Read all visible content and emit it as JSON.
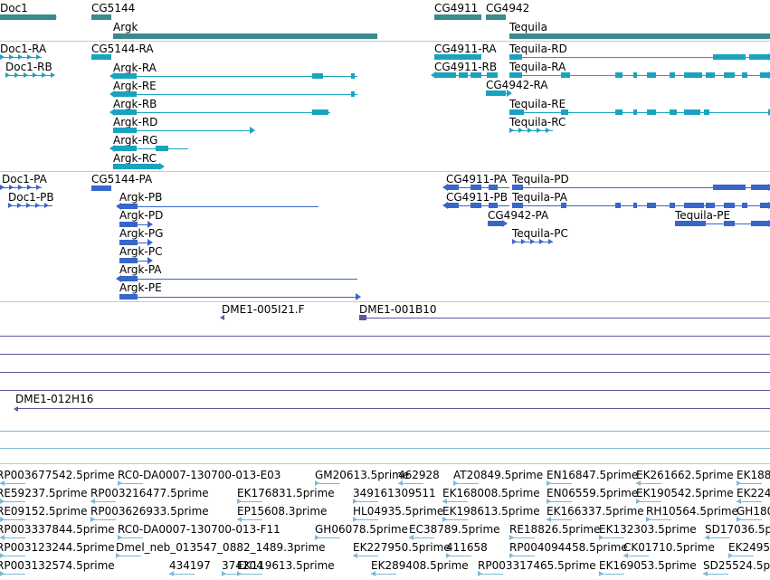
{
  "colors": {
    "gene": "#3a8a8c",
    "transcript_a": "#1aa3bf",
    "transcript_b": "#3866c9",
    "clone": "#6b4fa0",
    "est": "#7fb7d9",
    "separator": "#c8c8c8"
  },
  "gene_track": {
    "labels": [
      "Doc1",
      "CG5144",
      "Argk",
      "CG4911",
      "CG4942",
      "Tequila"
    ]
  },
  "transcript_track_a": {
    "labels": [
      "Doc1-RA",
      "Doc1-RB",
      "CG5144-RA",
      "Argk-RA",
      "Argk-RE",
      "Argk-RB",
      "Argk-RD",
      "Argk-RG",
      "Argk-RC",
      "CG4911-RA",
      "CG4911-RB",
      "CG4942-RA",
      "Tequila-RD",
      "Tequila-RA",
      "Tequila-RE",
      "Tequila-RC"
    ]
  },
  "transcript_track_b": {
    "labels": [
      "Doc1-PA",
      "Doc1-PB",
      "CG5144-PA",
      "Argk-PB",
      "Argk-PD",
      "Argk-PG",
      "Argk-PC",
      "Argk-PA",
      "Argk-PE",
      "CG4911-PA",
      "CG4911-PB",
      "Tequila-PD",
      "Tequila-PA",
      "CG4942-PA",
      "Tequila-PE",
      "Tequila-PC"
    ]
  },
  "clone_track": {
    "labels": [
      "DME1-005I21.F",
      "DME1-001B10",
      "DME1-012H16"
    ]
  },
  "est_track": {
    "labels": [
      "RP003677542.5prime",
      "RC0-DA0007-130700-013-E03",
      "GM20613.5prime",
      "462928",
      "AT20849.5prime",
      "EN16847.5prime",
      "EK261662.5prime",
      "EK188",
      "RE59237.5prime",
      "RP003216477.5prime",
      "EK176831.5prime",
      "349161309511",
      "EK168008.5prime",
      "EN06559.5prime",
      "EK190542.5prime",
      "EK224",
      "RE09152.5prime",
      "RP003626933.5prime",
      "EP15608.3prime",
      "HL04935.5prime",
      "EK198613.5prime",
      "EK166337.5prime",
      "RH10564.5prime",
      "GH180",
      "RP003337844.5prime",
      "RC0-DA0007-130700-013-F11",
      "GH06078.5prime",
      "EC38789.5prime",
      "RE18826.5prime",
      "EK132303.5prime",
      "SD17036.5prime",
      "RP003123244.5prime",
      "Dmel_neb_013547_0882_1489.3prime",
      "EK227950.5prime",
      "411658",
      "RP004094458.5prime",
      "CK01710.5prime",
      "EK2495",
      "RP003132574.5prime",
      "434197",
      "374204",
      "EK119613.5prime",
      "EK289408.5prime",
      "RP003317465.5prime",
      "EK169053.5prime",
      "SD25524.5prime"
    ]
  }
}
